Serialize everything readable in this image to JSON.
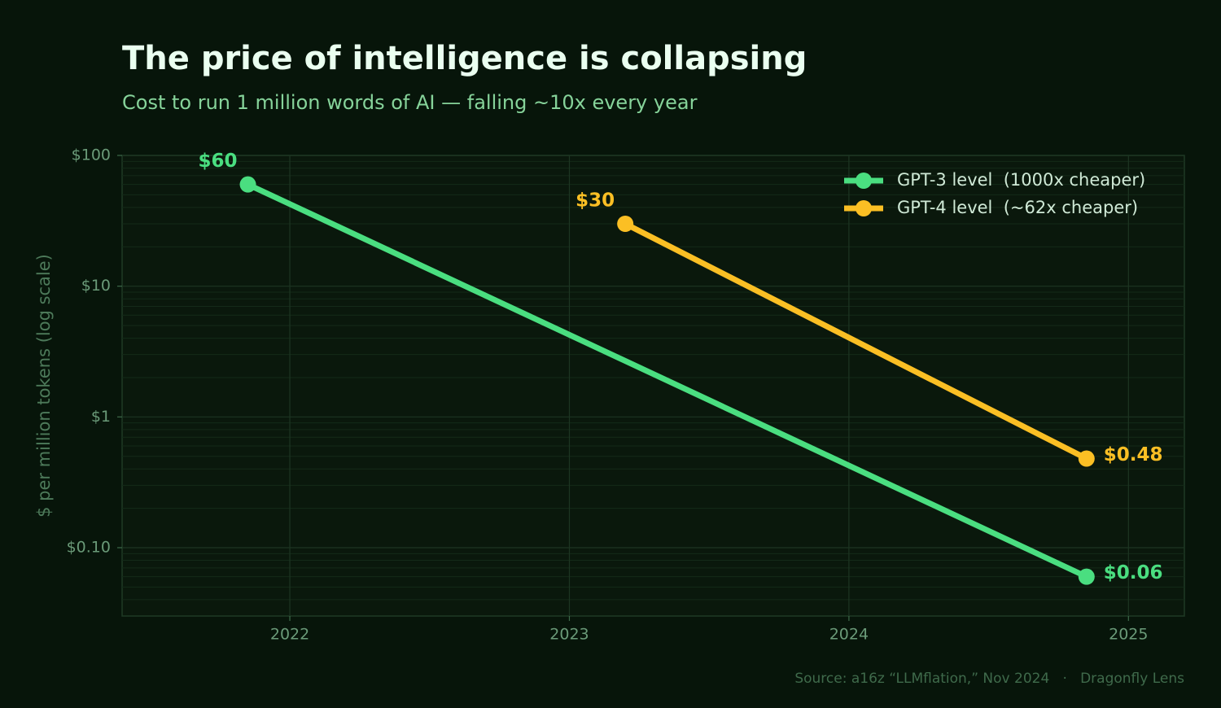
{
  "chart_data": {
    "type": "line",
    "title": "The price of intelligence is collapsing",
    "subtitle": "Cost to run 1 million words of AI — falling ~10x every year",
    "y_label": "$ per million tokens (log scale)",
    "source": "Source: a16z “LLMflation,” Nov 2024   ·   Dragonfly Lens",
    "series": [
      {
        "name": "GPT-3 level  (1000x cheaper)",
        "color": "#4ade80",
        "x": [
          2021.85,
          2024.85
        ],
        "values": [
          60,
          0.06
        ],
        "value_labels": [
          "$60",
          "$0.06"
        ]
      },
      {
        "name": "GPT-4 level  (~62x cheaper)",
        "color": "#fbbf24",
        "x": [
          2023.2,
          2024.85
        ],
        "values": [
          30,
          0.48
        ],
        "value_labels": [
          "$30",
          "$0.48"
        ]
      }
    ],
    "xlim": [
      2021.4,
      2025.2
    ],
    "xticks": [
      2022,
      2023,
      2024,
      2025
    ],
    "ylim": [
      0.03,
      100
    ],
    "yticks": [
      {
        "value": 0.1,
        "label": "$0.10"
      },
      {
        "value": 1,
        "label": "$1"
      },
      {
        "value": 10,
        "label": "$10"
      },
      {
        "value": 100,
        "label": "$100"
      }
    ],
    "log_y": true,
    "grid": true,
    "minor_grid": true,
    "legend": "upper right"
  }
}
